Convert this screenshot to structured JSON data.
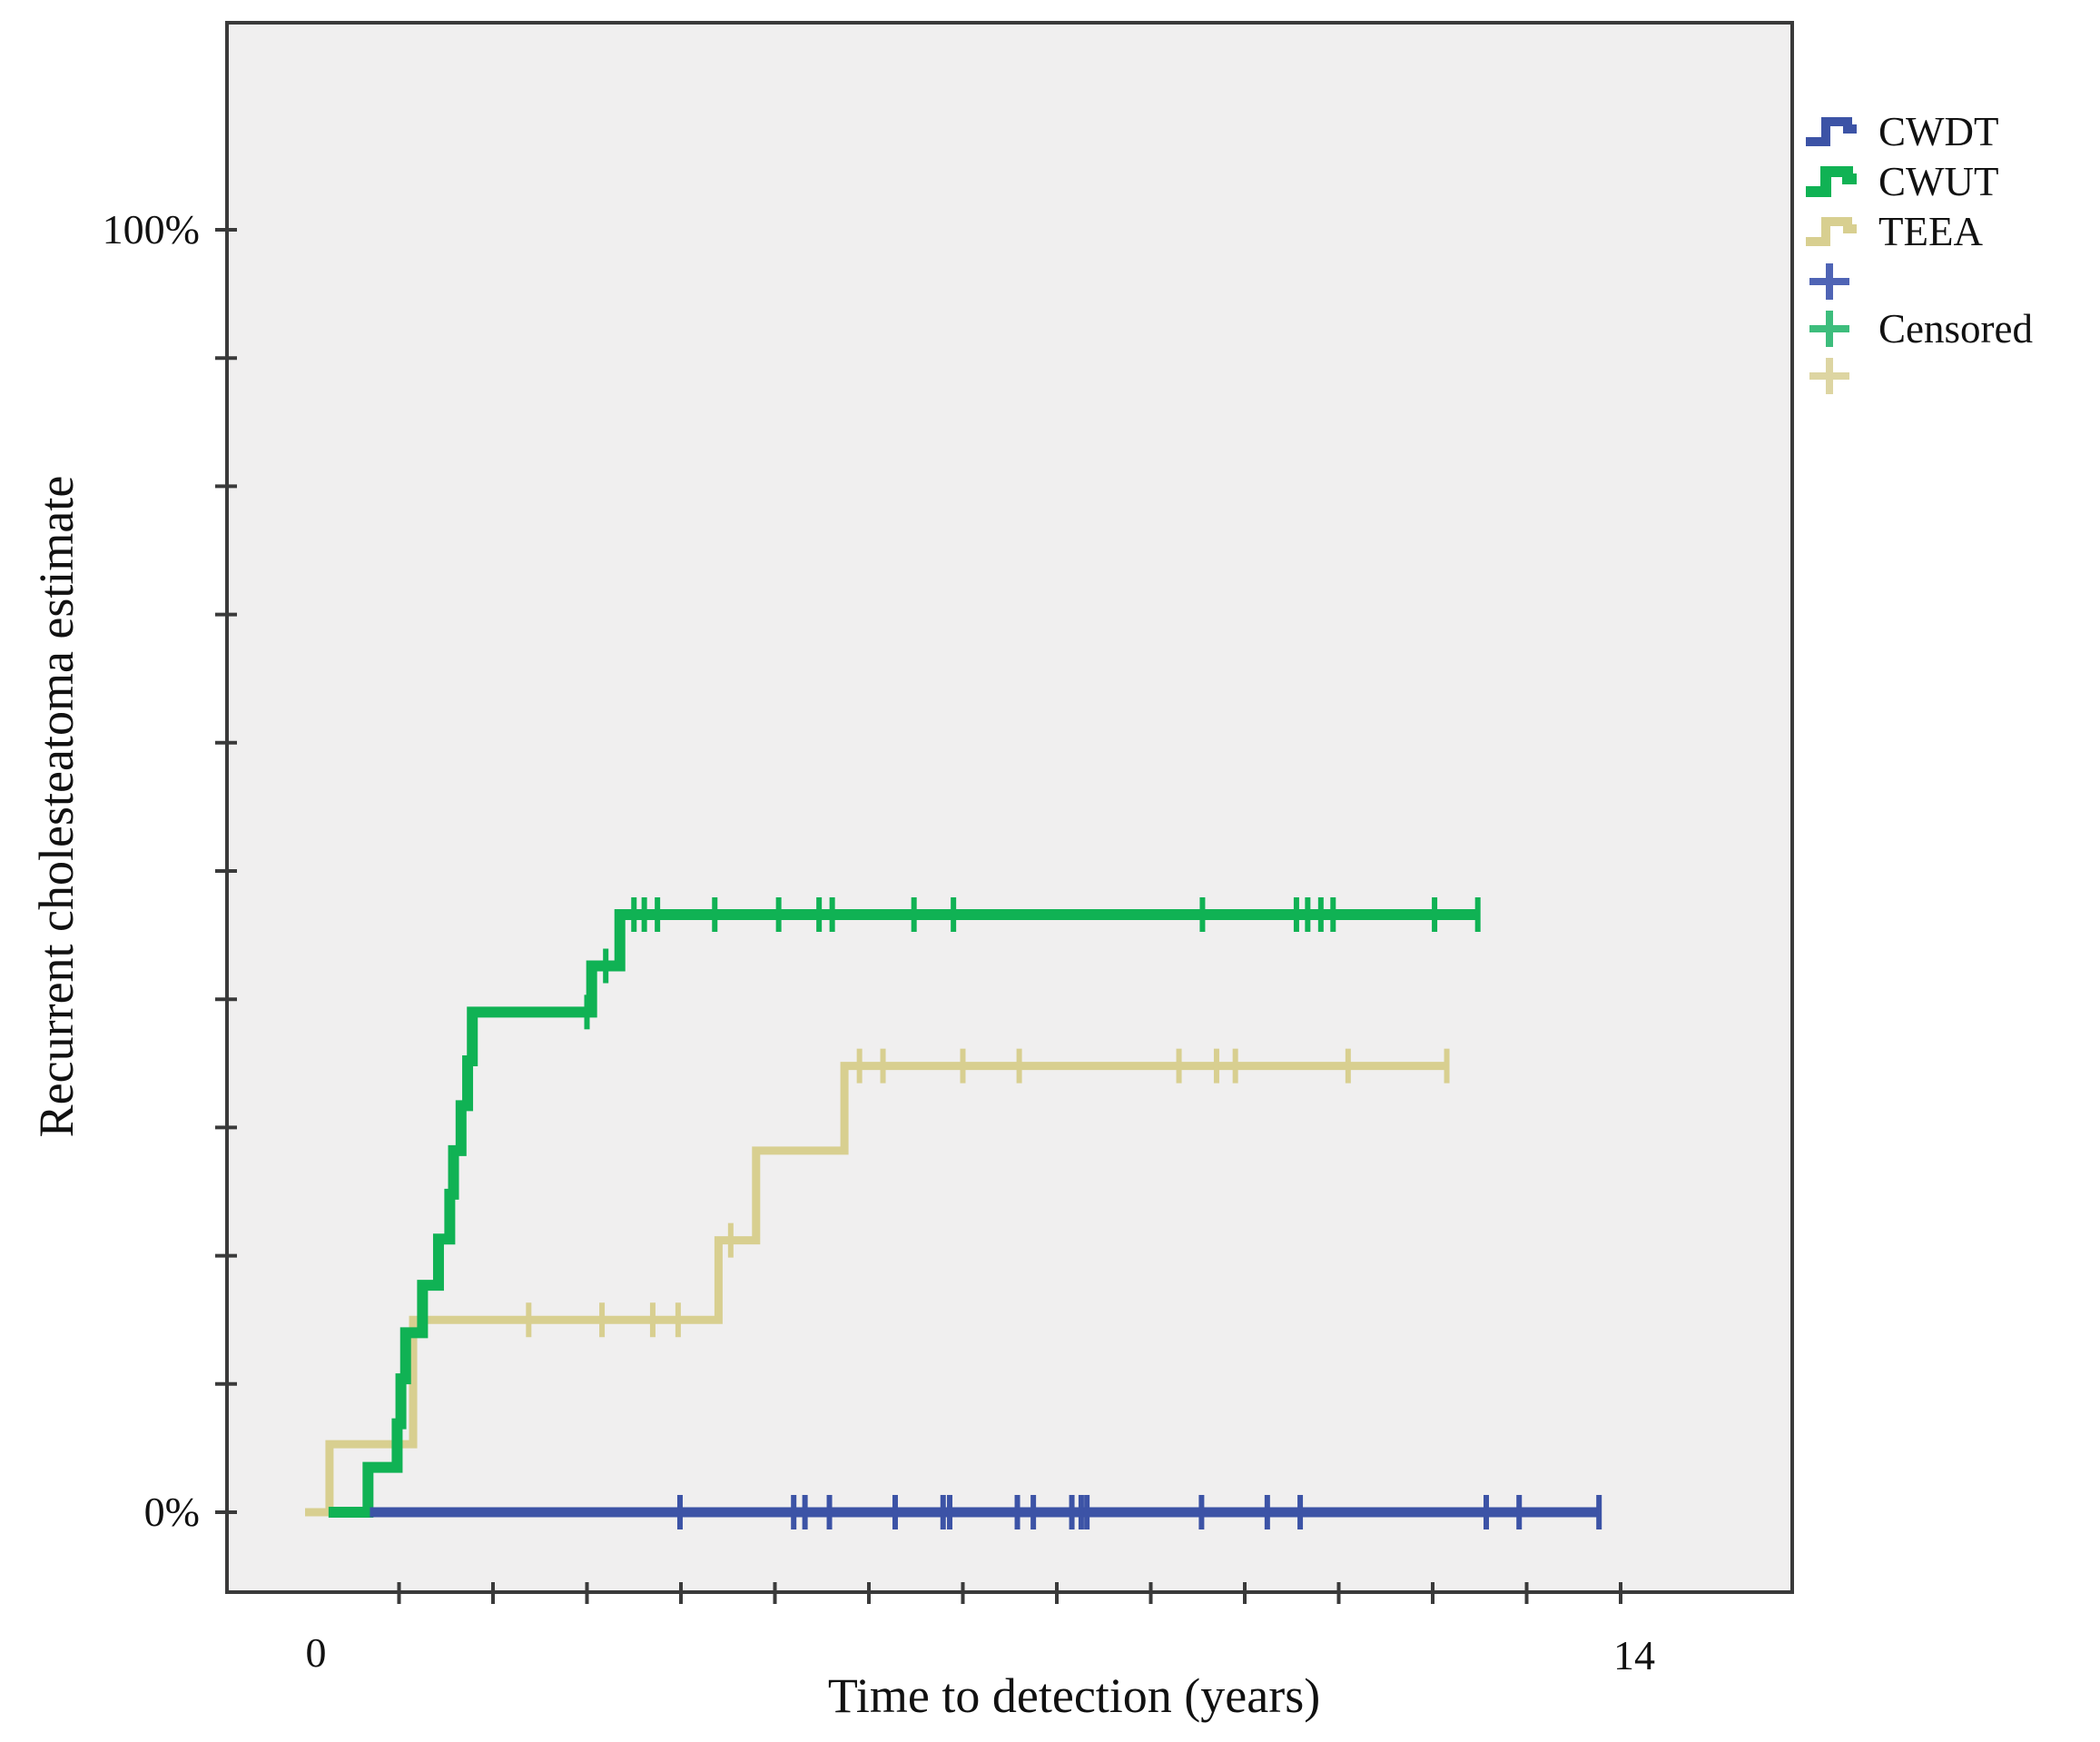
{
  "figure": {
    "background": "#ffffff",
    "plot_background": "#f0efef",
    "plot_border_color": "#3a3a3a",
    "text_color": "#111111"
  },
  "chart_data": {
    "type": "line",
    "subtype": "kaplan-meier-step-curves",
    "title": "",
    "xlabel": "Time to detection (years)",
    "ylabel": "Recurrent cholesteatoma estimate",
    "x_axis": {
      "min": 0,
      "max": 14,
      "tick_interval_years": 1,
      "labeled_ticks": [
        "0",
        "14"
      ]
    },
    "y_axis": {
      "min_percent": 0,
      "max_percent": 100,
      "tick_interval_percent": 10,
      "labeled_ticks": [
        "0%",
        "100%"
      ]
    },
    "grid": false,
    "legend_position": "outside-top-right",
    "censored_label": "Censored",
    "y_tick_label_top": "100%",
    "y_tick_label_bottom": "0%",
    "x_tick_label_left": "0",
    "x_tick_label_right": "14",
    "series": [
      {
        "name": "CWDT",
        "color": "#3c53a6",
        "censor_color": "#4f64b5",
        "line_width": 11,
        "steps_year_percent": [
          [
            0.69,
            0
          ]
        ],
        "end_year": 13.77,
        "censored_year_percent": [
          [
            3.99,
            0
          ],
          [
            5.2,
            0
          ],
          [
            5.32,
            0
          ],
          [
            5.58,
            0
          ],
          [
            6.28,
            0
          ],
          [
            6.79,
            0
          ],
          [
            6.86,
            0
          ],
          [
            7.58,
            0
          ],
          [
            7.75,
            0
          ],
          [
            8.16,
            0
          ],
          [
            8.26,
            0
          ],
          [
            8.32,
            0
          ],
          [
            9.54,
            0
          ],
          [
            10.24,
            0
          ],
          [
            10.59,
            0
          ],
          [
            12.57,
            0
          ],
          [
            12.92,
            0
          ],
          [
            13.77,
            0
          ]
        ]
      },
      {
        "name": "CWUT",
        "color": "#10b254",
        "censor_color": "#3dbd7c",
        "line_width": 12,
        "steps_year_percent": [
          [
            0.25,
            0
          ],
          [
            0.67,
            3.5
          ],
          [
            0.98,
            6.9
          ],
          [
            1.02,
            10.4
          ],
          [
            1.07,
            14.0
          ],
          [
            1.25,
            17.7
          ],
          [
            1.42,
            21.3
          ],
          [
            1.54,
            24.8
          ],
          [
            1.58,
            28.2
          ],
          [
            1.66,
            31.7
          ],
          [
            1.73,
            35.2
          ],
          [
            1.78,
            39.0
          ],
          [
            3.05,
            42.6
          ],
          [
            3.35,
            46.6
          ]
        ],
        "end_year": 12.5,
        "censored_year_percent": [
          [
            3.0,
            39.0
          ],
          [
            3.2,
            42.6
          ],
          [
            3.5,
            46.6
          ],
          [
            3.61,
            46.6
          ],
          [
            3.75,
            46.6
          ],
          [
            4.36,
            46.6
          ],
          [
            5.04,
            46.6
          ],
          [
            5.47,
            46.6
          ],
          [
            5.61,
            46.6
          ],
          [
            6.48,
            46.6
          ],
          [
            6.9,
            46.6
          ],
          [
            9.55,
            46.6
          ],
          [
            10.55,
            46.6
          ],
          [
            10.67,
            46.6
          ],
          [
            10.81,
            46.6
          ],
          [
            10.94,
            46.6
          ],
          [
            12.02,
            46.6
          ],
          [
            12.48,
            46.6
          ]
        ]
      },
      {
        "name": "TEEA",
        "color": "#d8cf90",
        "censor_color": "#ddd5a2",
        "line_width": 9,
        "steps_year_percent": [
          [
            0.0,
            0
          ],
          [
            0.26,
            5.3
          ],
          [
            1.15,
            15.0
          ],
          [
            4.4,
            21.2
          ],
          [
            4.8,
            28.2
          ],
          [
            5.74,
            34.8
          ]
        ],
        "end_year": 12.17,
        "censored_year_percent": [
          [
            2.38,
            15.0
          ],
          [
            3.16,
            15.0
          ],
          [
            3.7,
            15.0
          ],
          [
            3.97,
            15.0
          ],
          [
            4.53,
            21.2
          ],
          [
            5.9,
            34.8
          ],
          [
            6.15,
            34.8
          ],
          [
            7.0,
            34.8
          ],
          [
            7.6,
            34.8
          ],
          [
            9.3,
            34.8
          ],
          [
            9.7,
            34.8
          ],
          [
            9.9,
            34.8
          ],
          [
            11.1,
            34.8
          ],
          [
            12.15,
            34.8
          ]
        ]
      }
    ]
  }
}
